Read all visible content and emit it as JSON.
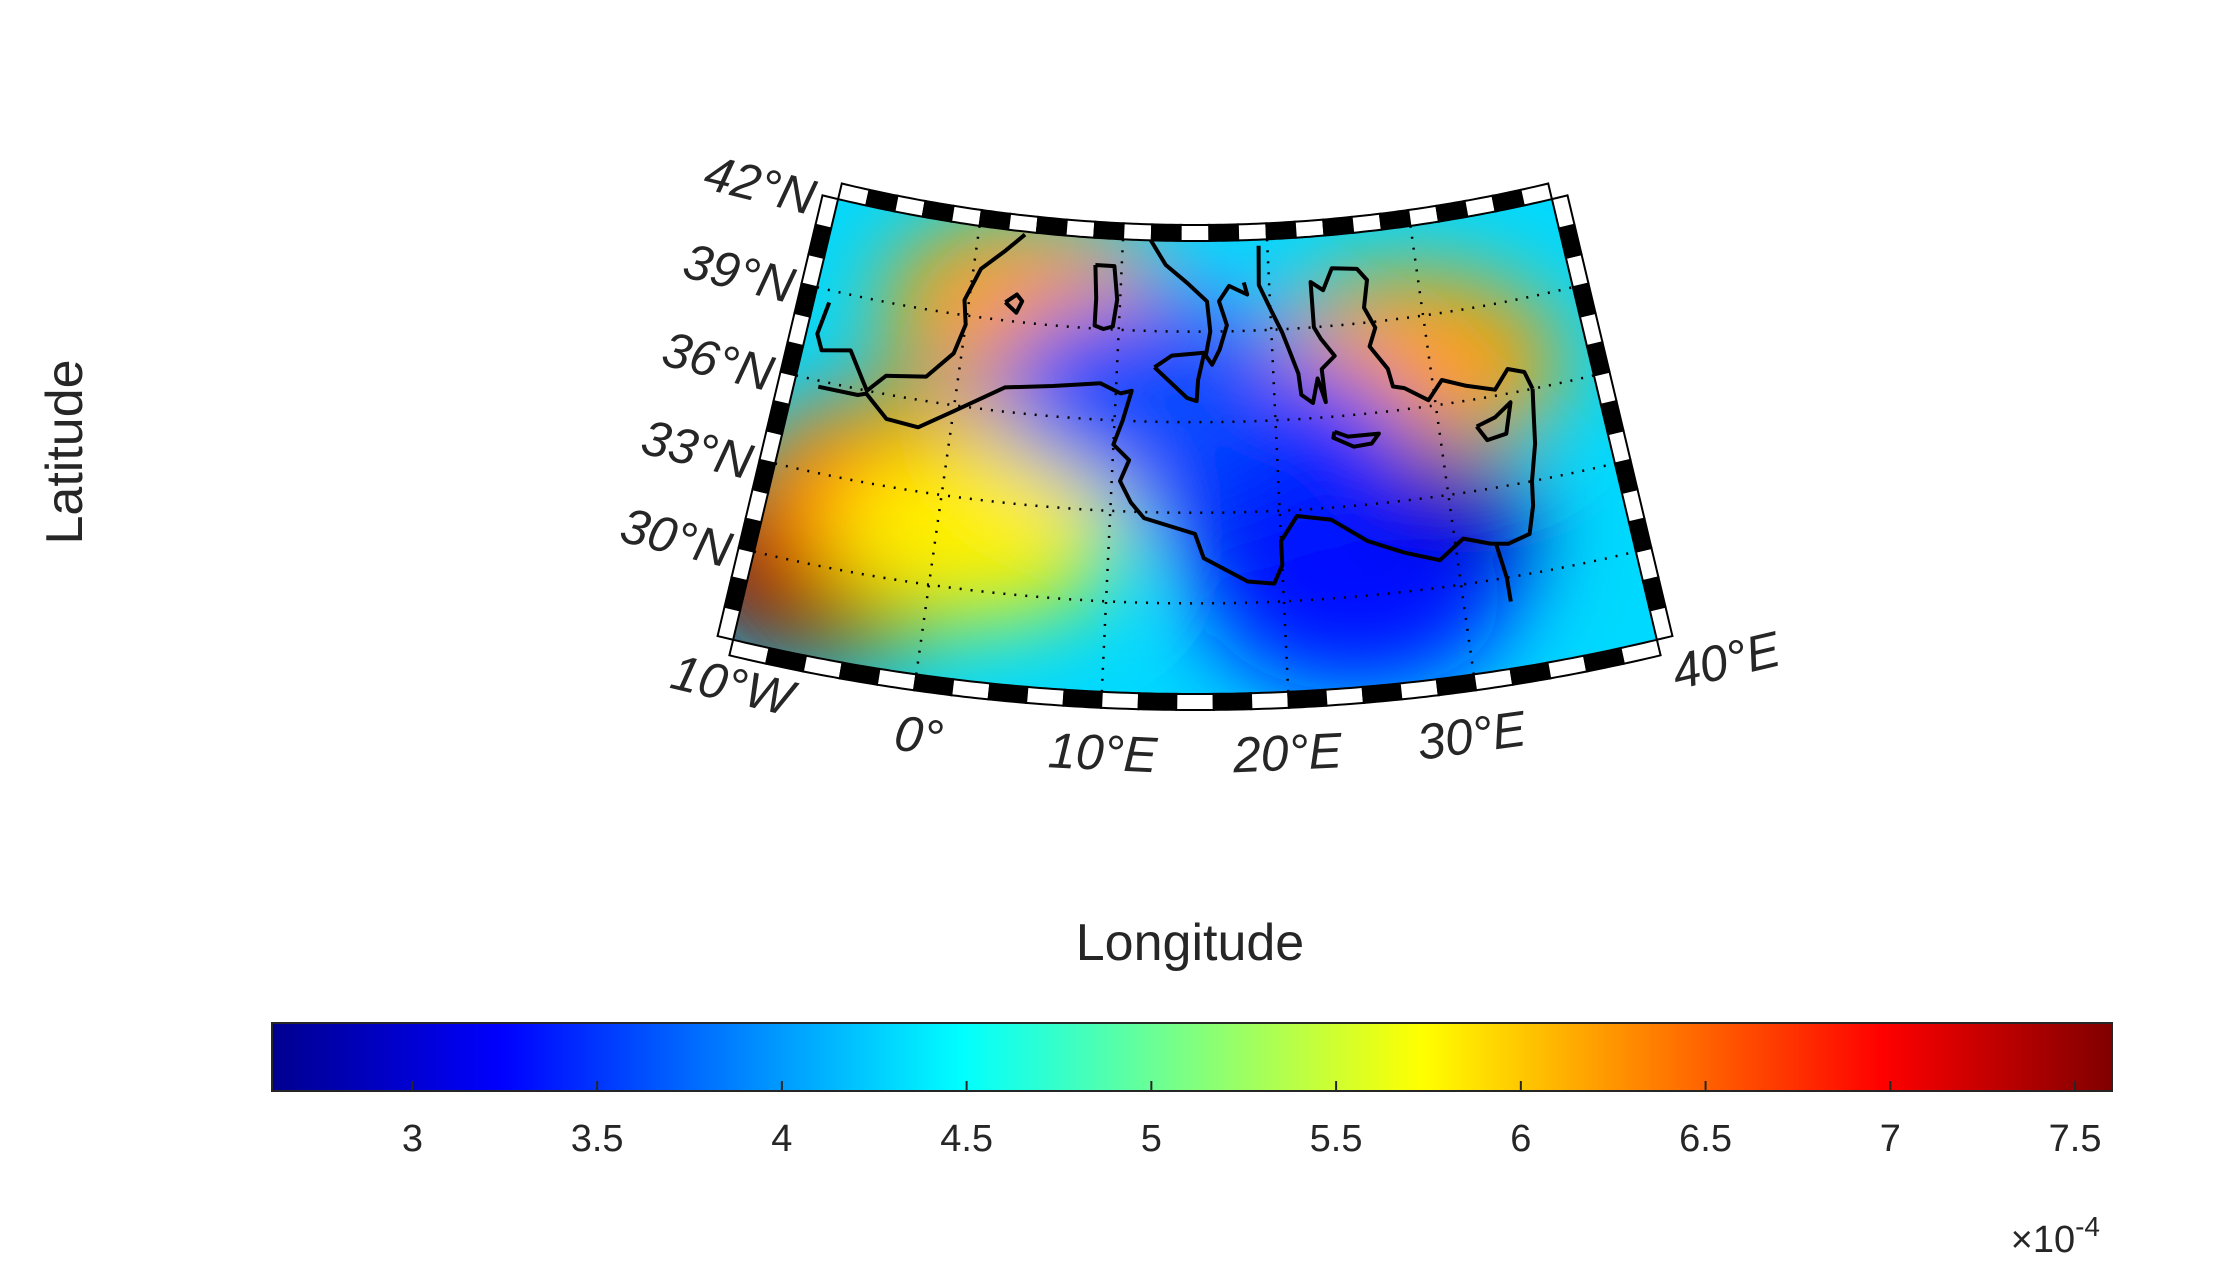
{
  "map": {
    "projection": "conic",
    "lon_range": [
      -10,
      40
    ],
    "lat_range": [
      27,
      42
    ],
    "colormap": "jet",
    "graticule": "dotted",
    "frame": "black-white striped",
    "lat_labels": [
      "42°N",
      "39°N",
      "36°N",
      "33°N",
      "30°N"
    ],
    "lon_labels": [
      "10°W",
      "0°",
      "10°E",
      "20°E",
      "30°E",
      "40°E"
    ],
    "xlabel": "Longitude",
    "ylabel": "Latitude",
    "field_hotspots": [
      {
        "lon": -6,
        "lat": 30,
        "value": 7.5
      },
      {
        "lon": -3,
        "lat": 33,
        "value": 6.5
      },
      {
        "lon": 4,
        "lat": 39.5,
        "value": 6.2
      },
      {
        "lon": 2,
        "lat": 32,
        "value": 5.8
      },
      {
        "lon": 29,
        "lat": 37.5,
        "value": 6.2
      },
      {
        "lon": 22,
        "lat": 33,
        "value": 2.8
      },
      {
        "lon": 26,
        "lat": 32,
        "value": 2.7
      },
      {
        "lon": 19,
        "lat": 35,
        "value": 3.4
      },
      {
        "lon": 24,
        "lat": 30,
        "value": 3.3
      },
      {
        "lon": 12,
        "lat": 37,
        "value": 3.6
      }
    ]
  },
  "colorbar": {
    "ticks": [
      "3",
      "3.5",
      "4",
      "4.5",
      "5",
      "5.5",
      "6",
      "6.5",
      "7",
      "7.5"
    ],
    "multiplier_base": "×10",
    "multiplier_exp": "-4",
    "range": [
      2.62,
      7.6
    ]
  },
  "chart_data": {
    "type": "heatmap",
    "xlabel": "Longitude",
    "ylabel": "Latitude",
    "x_range": [
      -10,
      40
    ],
    "y_range": [
      27,
      42
    ],
    "colorbar_range": [
      2.62,
      7.6
    ],
    "colorbar_scale": "×10^-4",
    "colorbar_ticks": [
      3,
      3.5,
      4,
      4.5,
      5,
      5.5,
      6,
      6.5,
      7,
      7.5
    ]
  }
}
